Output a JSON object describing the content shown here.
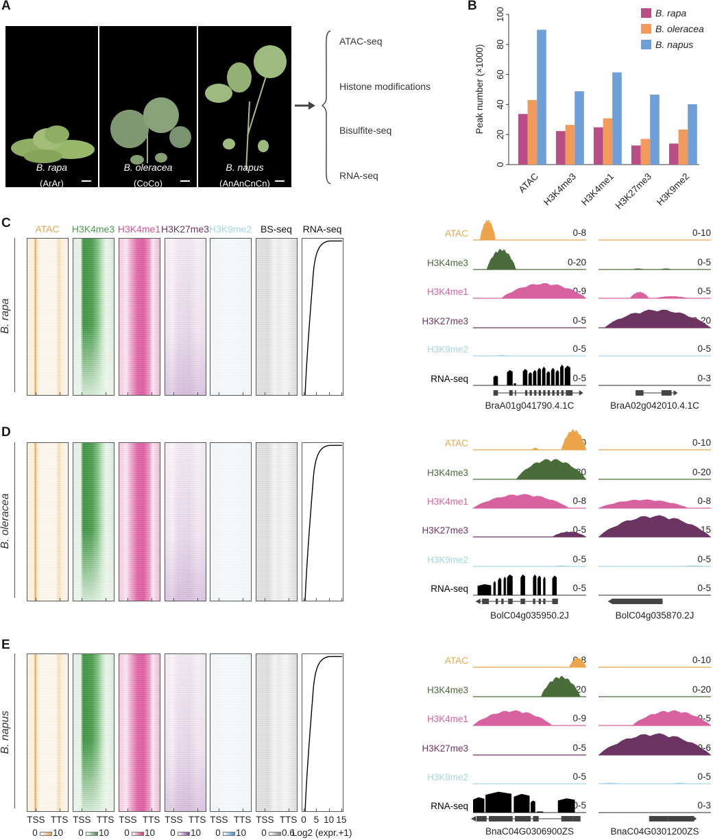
{
  "panels": {
    "A": "A",
    "B": "B",
    "C": "C",
    "D": "D",
    "E": "E"
  },
  "colors": {
    "atac": "#eca54b",
    "h3k4me3": "#4a6b3a",
    "h3k4me1": "#d8629f",
    "h3k27me3": "#6b3462",
    "h3k9me2": "#a6d4e4",
    "rna": "#000000",
    "rapa": "#b94d86",
    "oleracea": "#f09a5c",
    "napus": "#6e9fd6"
  },
  "panelA": {
    "plants": [
      {
        "species": "B. rapa",
        "genome": "(ArAr)"
      },
      {
        "species": "B. oleracea",
        "genome": "(CoCo)"
      },
      {
        "species": "B. napus",
        "genome": "(AnAnCnCn)"
      }
    ],
    "assays": [
      "ATAC-seq",
      "Histone modifications",
      "Bisulfite-seq",
      "RNA-seq"
    ]
  },
  "chart_data": [
    {
      "type": "bar",
      "panel": "B",
      "title": "",
      "xlabel": "",
      "ylabel": "Peak number (×1000)",
      "ylim": [
        0,
        100
      ],
      "yticks": [
        0,
        20,
        40,
        60,
        80,
        100
      ],
      "categories": [
        "ATAC",
        "H3K4me3",
        "H3K4me1",
        "H3K27me3",
        "H3K9me2"
      ],
      "series": [
        {
          "name": "B. rapa",
          "values": [
            33.7,
            22.3,
            24.8,
            12.7,
            14.0
          ]
        },
        {
          "name": "B. oleracea",
          "values": [
            43.0,
            26.4,
            30.8,
            17.1,
            23.3
          ]
        },
        {
          "name": "B. napus",
          "values": [
            89.8,
            48.8,
            61.4,
            46.6,
            40.2
          ]
        }
      ],
      "legend": "top-right",
      "grid": false
    },
    {
      "type": "heatmap",
      "panels": [
        "C",
        "D",
        "E"
      ],
      "columns": [
        "ATAC",
        "H3K4me3",
        "H3K4me1",
        "H3K27me3",
        "H3K9me2",
        "BS-seq",
        "RNA-seq"
      ],
      "species": [
        "B. rapa",
        "B. oleracea",
        "B. napus"
      ],
      "xticks": [
        "TSS",
        "TTS"
      ],
      "rna_xticks": [
        "0",
        "5",
        "10",
        "15"
      ],
      "colorbars": [
        {
          "min": "0",
          "max": "10"
        },
        {
          "min": "0",
          "max": "10"
        },
        {
          "min": "0",
          "max": "10"
        },
        {
          "min": "0",
          "max": "10"
        },
        {
          "min": "0",
          "max": "10"
        },
        {
          "min": "0",
          "max": "0.6"
        }
      ],
      "rna_axis_label": "Log2 (expr.+1)"
    }
  ],
  "tracks": {
    "labels": [
      "ATAC",
      "H3K4me3",
      "H3K4me1",
      "H3K27me3",
      "H3K9me2",
      "RNA-seq"
    ],
    "C": {
      "left": {
        "gene": "BraA01g041790.4.1C",
        "scales": [
          "0-8",
          "0-20",
          "0-9",
          "0-5",
          "0-5",
          "0-5"
        ]
      },
      "right": {
        "gene": "BraA02g042010.4.1C",
        "scales": [
          "0-10",
          "0-5",
          "0-5",
          "0-20",
          "0-5",
          "0-3"
        ]
      }
    },
    "D": {
      "left": {
        "gene": "BolC04g035950.2J",
        "scales": [
          "0-10",
          "0-20",
          "0-8",
          "0-5",
          "0-5",
          "0-5"
        ]
      },
      "right": {
        "gene": "BolC04g035870.2J",
        "scales": [
          "0-10",
          "0-20",
          "0-8",
          "0-15",
          "0-5",
          "0-5"
        ]
      }
    },
    "E": {
      "left": {
        "gene": "BnaC04G0306900ZS",
        "scales": [
          "0-8",
          "0-20",
          "0-9",
          "0-5",
          "0-5",
          "0-5"
        ]
      },
      "right": {
        "gene": "BnaC04G0301200ZS",
        "scales": [
          "0-10",
          "0-20",
          "0-5",
          "0-6",
          "0-5",
          "0-3"
        ]
      }
    }
  }
}
